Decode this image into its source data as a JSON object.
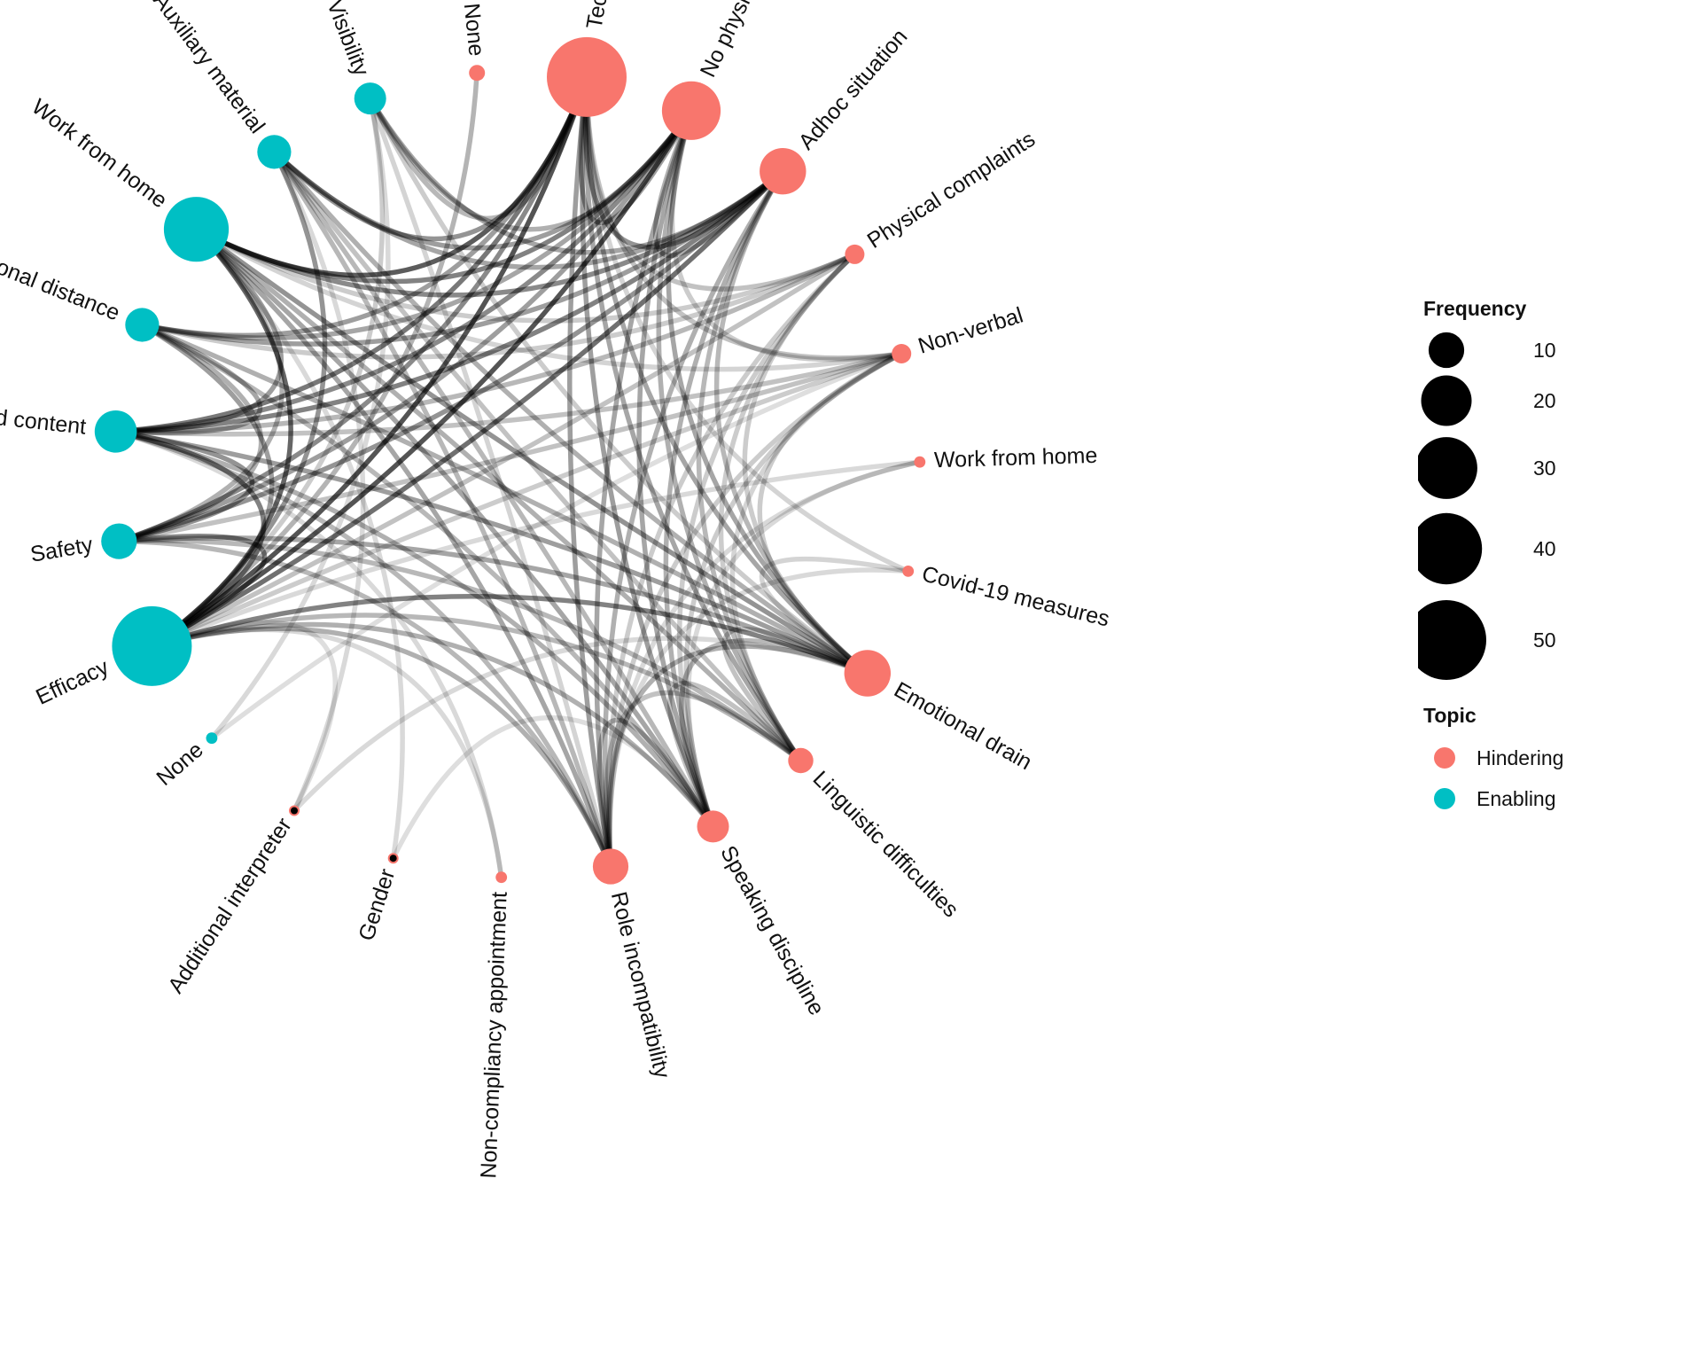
{
  "colors": {
    "Hindering": "#F8766D",
    "Enabling": "#00BFC4",
    "edge": "#000000",
    "legend_circle": "#000000"
  },
  "legend": {
    "frequency_title": "Frequency",
    "sizes": [
      10,
      20,
      30,
      40,
      50
    ],
    "topic_title": "Topic",
    "topics": [
      "Hindering",
      "Enabling"
    ]
  },
  "nodes": [
    {
      "id": "technical",
      "label": "Technical",
      "topic": "Hindering",
      "frequency": 50
    },
    {
      "id": "no_physical_presence",
      "label": "No physical presence",
      "topic": "Hindering",
      "frequency": 27
    },
    {
      "id": "adhoc_situation",
      "label": "Adhoc situation",
      "topic": "Hindering",
      "frequency": 17
    },
    {
      "id": "physical_complaints",
      "label": "Physical complaints",
      "topic": "Hindering",
      "frequency": 3
    },
    {
      "id": "non_verbal",
      "label": "Non-verbal",
      "topic": "Hindering",
      "frequency": 3
    },
    {
      "id": "work_from_home_h",
      "label": "Work from home",
      "topic": "Hindering",
      "frequency": 1
    },
    {
      "id": "covid19_measures",
      "label": "Covid-19 measures",
      "topic": "Hindering",
      "frequency": 1
    },
    {
      "id": "emotional_drain",
      "label": "Emotional drain",
      "topic": "Hindering",
      "frequency": 17
    },
    {
      "id": "linguistic_difficulties",
      "label": "Linguistic difficulties",
      "topic": "Hindering",
      "frequency": 5
    },
    {
      "id": "speaking_discipline",
      "label": "Speaking discipline",
      "topic": "Hindering",
      "frequency": 8
    },
    {
      "id": "role_incompatibility",
      "label": "Role incompatibility",
      "topic": "Hindering",
      "frequency": 10
    },
    {
      "id": "non_compliancy_appointment",
      "label": "Non-compliancy appointment",
      "topic": "Hindering",
      "frequency": 1
    },
    {
      "id": "gender",
      "label": "Gender",
      "topic": "Hindering",
      "frequency": 0.3
    },
    {
      "id": "additional_interpreter",
      "label": "Additional interpreter",
      "topic": "Hindering",
      "frequency": 0.3
    },
    {
      "id": "none_e",
      "label": "None",
      "topic": "Enabling",
      "frequency": 1
    },
    {
      "id": "efficacy",
      "label": "Efficacy",
      "topic": "Enabling",
      "frequency": 50
    },
    {
      "id": "safety",
      "label": "Safety",
      "topic": "Enabling",
      "frequency": 10
    },
    {
      "id": "varied_content",
      "label": "Varied content",
      "topic": "Enabling",
      "frequency": 14
    },
    {
      "id": "emotional_distance",
      "label": "Emotional distance",
      "topic": "Enabling",
      "frequency": 9
    },
    {
      "id": "work_from_home_e",
      "label": "Work from home",
      "topic": "Enabling",
      "frequency": 33
    },
    {
      "id": "auxiliary_material",
      "label": "Auxiliary material",
      "topic": "Enabling",
      "frequency": 9
    },
    {
      "id": "visibility",
      "label": "Visibility",
      "topic": "Enabling",
      "frequency": 8
    },
    {
      "id": "none_h",
      "label": "None",
      "topic": "Hindering",
      "frequency": 2
    }
  ],
  "edges": [
    [
      "efficacy",
      "technical",
      0.85
    ],
    [
      "efficacy",
      "no_physical_presence",
      0.85
    ],
    [
      "efficacy",
      "adhoc_situation",
      0.7
    ],
    [
      "efficacy",
      "emotional_drain",
      0.6
    ],
    [
      "efficacy",
      "work_from_home_e",
      0.75
    ],
    [
      "efficacy",
      "auxiliary_material",
      0.5
    ],
    [
      "efficacy",
      "safety",
      0.55
    ],
    [
      "efficacy",
      "varied_content",
      0.6
    ],
    [
      "efficacy",
      "emotional_distance",
      0.45
    ],
    [
      "efficacy",
      "visibility",
      0.2
    ],
    [
      "efficacy",
      "physical_complaints",
      0.25
    ],
    [
      "efficacy",
      "non_verbal",
      0.2
    ],
    [
      "efficacy",
      "role_incompatibility",
      0.35
    ],
    [
      "efficacy",
      "speaking_discipline",
      0.35
    ],
    [
      "efficacy",
      "linguistic_difficulties",
      0.3
    ],
    [
      "efficacy",
      "none_h",
      0.15
    ],
    [
      "efficacy",
      "work_from_home_h",
      0.12
    ],
    [
      "work_from_home_e",
      "technical",
      0.8
    ],
    [
      "work_from_home_e",
      "no_physical_presence",
      0.6
    ],
    [
      "work_from_home_e",
      "adhoc_situation",
      0.55
    ],
    [
      "work_from_home_e",
      "emotional_drain",
      0.5
    ],
    [
      "work_from_home_e",
      "role_incompatibility",
      0.4
    ],
    [
      "work_from_home_e",
      "speaking_discipline",
      0.4
    ],
    [
      "work_from_home_e",
      "linguistic_difficulties",
      0.35
    ],
    [
      "work_from_home_e",
      "varied_content",
      0.45
    ],
    [
      "work_from_home_e",
      "safety",
      0.35
    ],
    [
      "work_from_home_e",
      "physical_complaints",
      0.2
    ],
    [
      "work_from_home_e",
      "non_verbal",
      0.15
    ],
    [
      "varied_content",
      "technical",
      0.65
    ],
    [
      "varied_content",
      "no_physical_presence",
      0.55
    ],
    [
      "varied_content",
      "adhoc_situation",
      0.6
    ],
    [
      "varied_content",
      "emotional_drain",
      0.45
    ],
    [
      "varied_content",
      "safety",
      0.5
    ],
    [
      "varied_content",
      "physical_complaints",
      0.3
    ],
    [
      "varied_content",
      "non_verbal",
      0.25
    ],
    [
      "varied_content",
      "speaking_discipline",
      0.35
    ],
    [
      "varied_content",
      "role_incompatibility",
      0.3
    ],
    [
      "varied_content",
      "emotional_distance",
      0.4
    ],
    [
      "safety",
      "technical",
      0.55
    ],
    [
      "safety",
      "no_physical_presence",
      0.45
    ],
    [
      "safety",
      "adhoc_situation",
      0.5
    ],
    [
      "safety",
      "emotional_drain",
      0.4
    ],
    [
      "safety",
      "role_incompatibility",
      0.3
    ],
    [
      "safety",
      "non_verbal",
      0.25
    ],
    [
      "safety",
      "linguistic_difficulties",
      0.3
    ],
    [
      "safety",
      "emotional_distance",
      0.35
    ],
    [
      "emotional_distance",
      "technical",
      0.45
    ],
    [
      "emotional_distance",
      "no_physical_presence",
      0.4
    ],
    [
      "emotional_distance",
      "adhoc_situation",
      0.45
    ],
    [
      "emotional_distance",
      "emotional_drain",
      0.35
    ],
    [
      "emotional_distance",
      "speaking_discipline",
      0.3
    ],
    [
      "emotional_distance",
      "physical_complaints",
      0.2
    ],
    [
      "auxiliary_material",
      "technical",
      0.5
    ],
    [
      "auxiliary_material",
      "no_physical_presence",
      0.45
    ],
    [
      "auxiliary_material",
      "adhoc_situation",
      0.4
    ],
    [
      "auxiliary_material",
      "emotional_drain",
      0.35
    ],
    [
      "auxiliary_material",
      "role_incompatibility",
      0.3
    ],
    [
      "auxiliary_material",
      "speaking_discipline",
      0.3
    ],
    [
      "auxiliary_material",
      "linguistic_difficulties",
      0.25
    ],
    [
      "visibility",
      "technical",
      0.3
    ],
    [
      "visibility",
      "no_physical_presence",
      0.35
    ],
    [
      "visibility",
      "adhoc_situation",
      0.4
    ],
    [
      "visibility",
      "emotional_drain",
      0.2
    ],
    [
      "visibility",
      "role_incompatibility",
      0.15
    ],
    [
      "technical",
      "role_incompatibility",
      0.45
    ],
    [
      "technical",
      "speaking_discipline",
      0.45
    ],
    [
      "technical",
      "linguistic_difficulties",
      0.4
    ],
    [
      "technical",
      "emotional_drain",
      0.4
    ],
    [
      "technical",
      "adhoc_situation",
      0.5
    ],
    [
      "technical",
      "no_physical_presence",
      0.45
    ],
    [
      "technical",
      "non_verbal",
      0.25
    ],
    [
      "technical",
      "physical_complaints",
      0.25
    ],
    [
      "technical",
      "covid19_measures",
      0.15
    ],
    [
      "no_physical_presence",
      "role_incompatibility",
      0.4
    ],
    [
      "no_physical_presence",
      "speaking_discipline",
      0.4
    ],
    [
      "no_physical_presence",
      "linguistic_difficulties",
      0.35
    ],
    [
      "no_physical_presence",
      "emotional_drain",
      0.4
    ],
    [
      "no_physical_presence",
      "adhoc_situation",
      0.35
    ],
    [
      "no_physical_presence",
      "non_verbal",
      0.2
    ],
    [
      "adhoc_situation",
      "role_incompatibility",
      0.35
    ],
    [
      "adhoc_situation",
      "speaking_discipline",
      0.35
    ],
    [
      "adhoc_situation",
      "emotional_drain",
      0.3
    ],
    [
      "adhoc_situation",
      "linguistic_difficulties",
      0.3
    ],
    [
      "emotional_drain",
      "role_incompatibility",
      0.35
    ],
    [
      "emotional_drain",
      "speaking_discipline",
      0.3
    ],
    [
      "emotional_drain",
      "linguistic_difficulties",
      0.25
    ],
    [
      "emotional_drain",
      "physical_complaints",
      0.2
    ],
    [
      "emotional_drain",
      "non_verbal",
      0.2
    ],
    [
      "emotional_drain",
      "covid19_measures",
      0.15
    ],
    [
      "physical_complaints",
      "role_incompatibility",
      0.2
    ],
    [
      "physical_complaints",
      "speaking_discipline",
      0.2
    ],
    [
      "physical_complaints",
      "linguistic_difficulties",
      0.2
    ],
    [
      "non_verbal",
      "role_incompatibility",
      0.2
    ],
    [
      "non_verbal",
      "speaking_discipline",
      0.2
    ],
    [
      "non_verbal",
      "linguistic_difficulties",
      0.15
    ],
    [
      "work_from_home_h",
      "role_incompatibility",
      0.12
    ],
    [
      "work_from_home_h",
      "speaking_discipline",
      0.12
    ],
    [
      "covid19_measures",
      "role_incompatibility",
      0.12
    ],
    [
      "role_incompatibility",
      "speaking_discipline",
      0.3
    ],
    [
      "role_incompatibility",
      "linguistic_difficulties",
      0.25
    ],
    [
      "speaking_discipline",
      "linguistic_difficulties",
      0.25
    ],
    [
      "none_e",
      "visibility",
      0.12
    ],
    [
      "none_e",
      "non_verbal",
      0.1
    ],
    [
      "additional_interpreter",
      "auxiliary_material",
      0.12
    ],
    [
      "additional_interpreter",
      "emotional_drain",
      0.12
    ],
    [
      "additional_interpreter",
      "efficacy",
      0.1
    ],
    [
      "gender",
      "work_from_home_e",
      0.12
    ],
    [
      "gender",
      "speaking_discipline",
      0.1
    ],
    [
      "non_compliancy_appointment",
      "efficacy",
      0.12
    ],
    [
      "non_compliancy_appointment",
      "varied_content",
      0.12
    ],
    [
      "none_h",
      "efficacy",
      0.12
    ]
  ]
}
